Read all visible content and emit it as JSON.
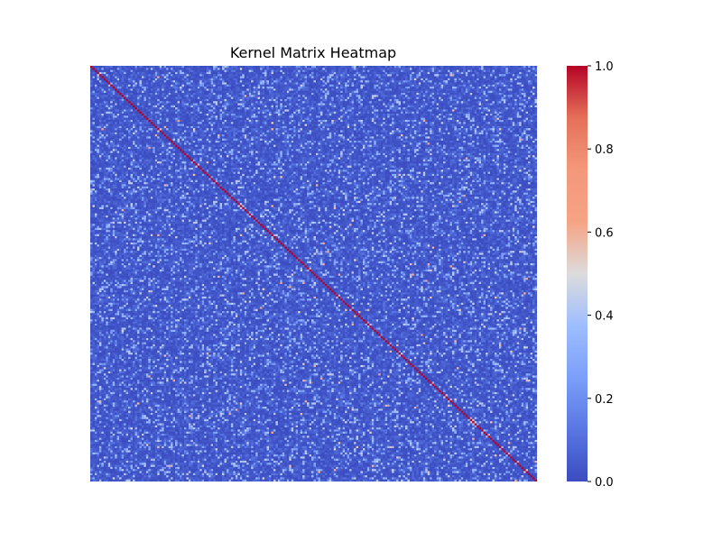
{
  "chart_data": {
    "type": "heatmap",
    "title": "Kernel Matrix Heatmap",
    "xlabel": "",
    "ylabel": "",
    "matrix_size": 200,
    "value_range": [
      0.0,
      1.0
    ],
    "diagonal_value": 1.0,
    "off_diagonal": {
      "typical_range": [
        0.0,
        0.15
      ],
      "occasional_range": [
        0.2,
        0.45
      ],
      "rare_max": 0.7
    },
    "colormap": "coolwarm",
    "colorbar": {
      "ticks": [
        0.0,
        0.2,
        0.4,
        0.6,
        0.8,
        1.0
      ],
      "tick_labels": [
        "0.0",
        "0.2",
        "0.4",
        "0.6",
        "0.8",
        "1.0"
      ],
      "placement": "right"
    },
    "axis_ticks_shown": false,
    "grid": false
  }
}
